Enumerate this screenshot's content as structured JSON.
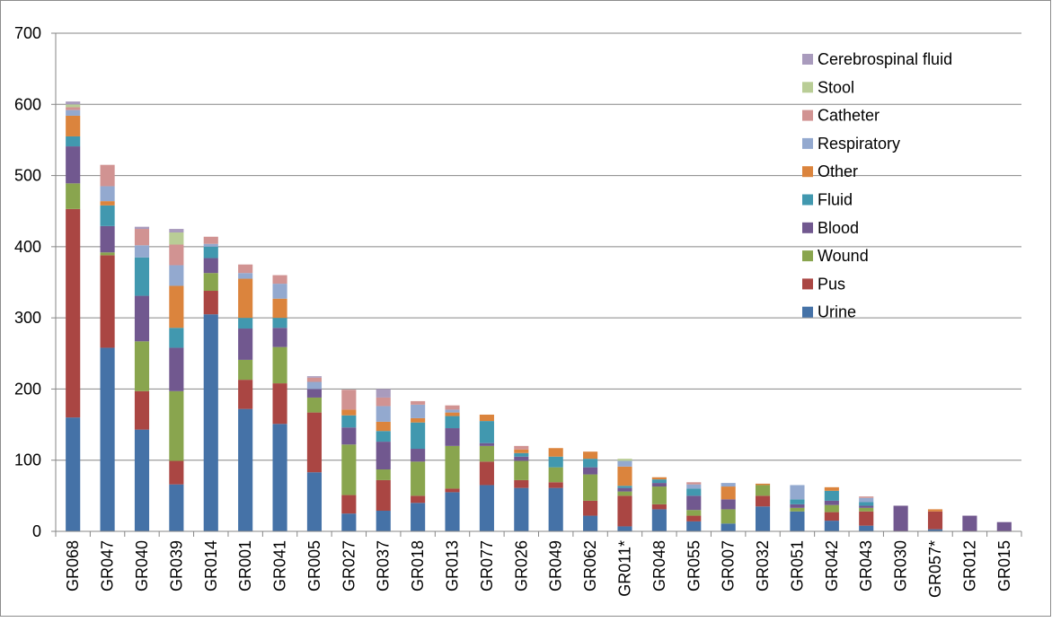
{
  "chart_data": {
    "type": "bar",
    "stacked": true,
    "title": "",
    "xlabel": "",
    "ylabel": "",
    "ylim": [
      0,
      700
    ],
    "yticks": [
      0,
      100,
      200,
      300,
      400,
      500,
      600,
      700
    ],
    "grid": true,
    "legend_position": "top-right",
    "categories": [
      "GR068",
      "GR047",
      "GR040",
      "GR039",
      "GR014",
      "GR001",
      "GR041",
      "GR005",
      "GR027",
      "GR037",
      "GR018",
      "GR013",
      "GR077",
      "GR026",
      "GR049",
      "GR062",
      "GR011*",
      "GR048",
      "GR055",
      "GR007",
      "GR032",
      "GR051",
      "GR042",
      "GR043",
      "GR030",
      "GR057*",
      "GR012",
      "GR015"
    ],
    "series": [
      {
        "name": "Urine",
        "color": "#4572A7",
        "values": [
          160,
          258,
          143,
          66,
          305,
          172,
          151,
          83,
          25,
          29,
          40,
          55,
          65,
          61,
          61,
          22,
          7,
          31,
          14,
          11,
          35,
          28,
          15,
          8,
          0,
          3,
          0,
          0
        ]
      },
      {
        "name": "Pus",
        "color": "#AA4643",
        "values": [
          293,
          130,
          54,
          33,
          33,
          41,
          57,
          84,
          26,
          43,
          10,
          5,
          33,
          11,
          8,
          21,
          43,
          7,
          8,
          0,
          15,
          0,
          12,
          20,
          0,
          25,
          0,
          0
        ]
      },
      {
        "name": "Wound",
        "color": "#89A54E",
        "values": [
          36,
          4,
          70,
          98,
          25,
          28,
          51,
          21,
          71,
          15,
          48,
          60,
          22,
          27,
          21,
          37,
          6,
          25,
          8,
          20,
          15,
          5,
          10,
          5,
          0,
          0,
          0,
          0
        ]
      },
      {
        "name": "Blood",
        "color": "#71588F",
        "values": [
          52,
          37,
          64,
          61,
          21,
          44,
          27,
          12,
          24,
          39,
          18,
          25,
          4,
          6,
          0,
          10,
          5,
          5,
          20,
          14,
          0,
          5,
          6,
          3,
          36,
          0,
          22,
          13
        ]
      },
      {
        "name": "Fluid",
        "color": "#4198AF",
        "values": [
          14,
          29,
          54,
          28,
          16,
          15,
          14,
          0,
          17,
          15,
          37,
          17,
          31,
          5,
          15,
          12,
          3,
          5,
          10,
          0,
          0,
          7,
          14,
          5,
          0,
          0,
          0,
          0
        ]
      },
      {
        "name": "Other",
        "color": "#DB843D",
        "values": [
          29,
          6,
          0,
          59,
          0,
          55,
          27,
          0,
          8,
          13,
          6,
          5,
          9,
          5,
          12,
          10,
          27,
          3,
          0,
          18,
          2,
          0,
          5,
          0,
          0,
          3,
          0,
          0
        ]
      },
      {
        "name": "Respiratory",
        "color": "#93A9CF",
        "values": [
          8,
          21,
          17,
          29,
          4,
          8,
          21,
          10,
          0,
          22,
          19,
          4,
          0,
          0,
          0,
          0,
          8,
          0,
          6,
          5,
          0,
          20,
          0,
          6,
          0,
          0,
          0,
          0
        ]
      },
      {
        "name": "Catheter",
        "color": "#D19392",
        "values": [
          4,
          30,
          23,
          29,
          10,
          12,
          12,
          6,
          28,
          12,
          5,
          6,
          0,
          5,
          0,
          0,
          0,
          0,
          3,
          0,
          0,
          0,
          0,
          2,
          0,
          0,
          0,
          0
        ]
      },
      {
        "name": "Stool",
        "color": "#B9CD96",
        "values": [
          4,
          0,
          0,
          17,
          0,
          0,
          0,
          0,
          0,
          0,
          0,
          0,
          0,
          0,
          0,
          0,
          3,
          0,
          0,
          0,
          0,
          0,
          0,
          0,
          0,
          0,
          0,
          0
        ]
      },
      {
        "name": "Cerebrospinal fluid",
        "color": "#A99BBD",
        "values": [
          4,
          0,
          3,
          5,
          0,
          0,
          0,
          2,
          0,
          12,
          0,
          0,
          0,
          0,
          0,
          0,
          0,
          0,
          0,
          0,
          0,
          0,
          0,
          0,
          0,
          0,
          0,
          0
        ]
      }
    ]
  }
}
